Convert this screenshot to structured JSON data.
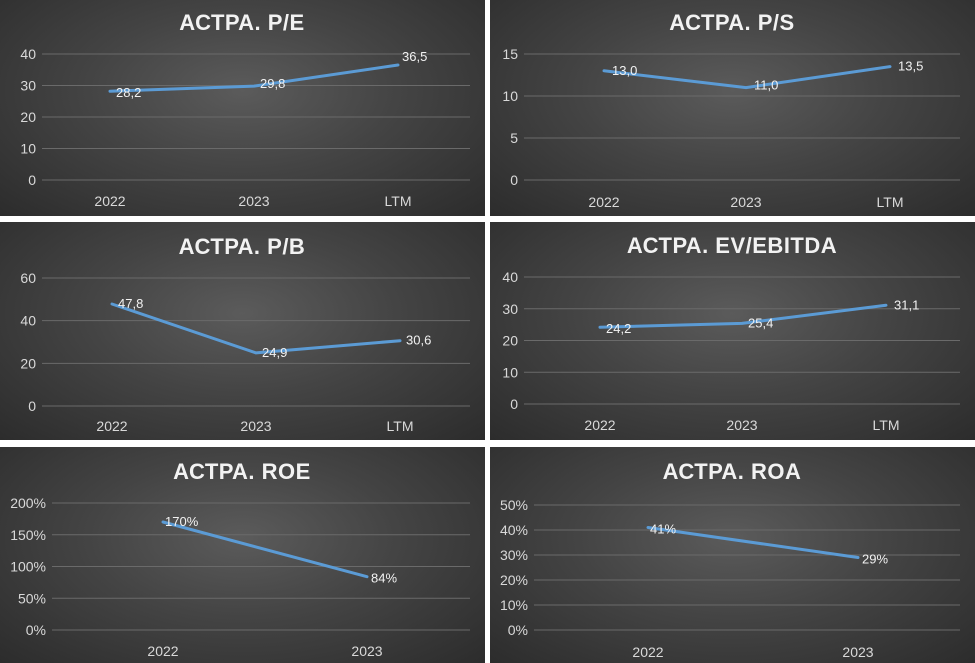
{
  "chart_data": [
    {
      "type": "line",
      "title": "АСТРА. P/E",
      "categories": [
        "2022",
        "2023",
        "LTM"
      ],
      "values": [
        28.2,
        29.8,
        36.5
      ],
      "data_labels": [
        "28,2",
        "29,8",
        "36,5"
      ],
      "y_ticks": [
        "0",
        "10",
        "20",
        "30",
        "40"
      ],
      "ylim": [
        0,
        40
      ],
      "xlabel": "",
      "ylabel": "",
      "grid": true,
      "series_color": "#5b9bd5"
    },
    {
      "type": "line",
      "title": "АСТРА. P/S",
      "categories": [
        "2022",
        "2023",
        "LTM"
      ],
      "values": [
        13.0,
        11.0,
        13.5
      ],
      "data_labels": [
        "13,0",
        "11,0",
        "13,5"
      ],
      "y_ticks": [
        "0",
        "5",
        "10",
        "15"
      ],
      "ylim": [
        0,
        15
      ],
      "xlabel": "",
      "ylabel": "",
      "grid": true,
      "series_color": "#5b9bd5"
    },
    {
      "type": "line",
      "title": "АСТРА. P/B",
      "categories": [
        "2022",
        "2023",
        "LTM"
      ],
      "values": [
        47.8,
        24.9,
        30.6
      ],
      "data_labels": [
        "47,8",
        "24,9",
        "30,6"
      ],
      "y_ticks": [
        "0",
        "20",
        "40",
        "60"
      ],
      "ylim": [
        0,
        60
      ],
      "xlabel": "",
      "ylabel": "",
      "grid": true,
      "series_color": "#5b9bd5"
    },
    {
      "type": "line",
      "title": "АСТРА. EV/EBITDA",
      "categories": [
        "2022",
        "2023",
        "LTM"
      ],
      "values": [
        24.2,
        25.4,
        31.1
      ],
      "data_labels": [
        "24,2",
        "25,4",
        "31,1"
      ],
      "y_ticks": [
        "0",
        "10",
        "20",
        "30",
        "40"
      ],
      "ylim": [
        0,
        40
      ],
      "xlabel": "",
      "ylabel": "",
      "grid": true,
      "series_color": "#5b9bd5"
    },
    {
      "type": "line",
      "title": "АСТРА. ROE",
      "categories": [
        "2022",
        "2023"
      ],
      "values": [
        170,
        84
      ],
      "data_labels": [
        "170%",
        "84%"
      ],
      "y_ticks": [
        "0%",
        "50%",
        "100%",
        "150%",
        "200%"
      ],
      "ylim": [
        0,
        200
      ],
      "xlabel": "",
      "ylabel": "",
      "grid": true,
      "series_color": "#5b9bd5"
    },
    {
      "type": "line",
      "title": "АСТРА. ROA",
      "categories": [
        "2022",
        "2023"
      ],
      "values": [
        41,
        29
      ],
      "data_labels": [
        "41%",
        "29%"
      ],
      "y_ticks": [
        "0%",
        "10%",
        "20%",
        "30%",
        "40%",
        "50%"
      ],
      "ylim": [
        0,
        50
      ],
      "xlabel": "",
      "ylabel": "",
      "grid": true,
      "series_color": "#5b9bd5"
    }
  ]
}
